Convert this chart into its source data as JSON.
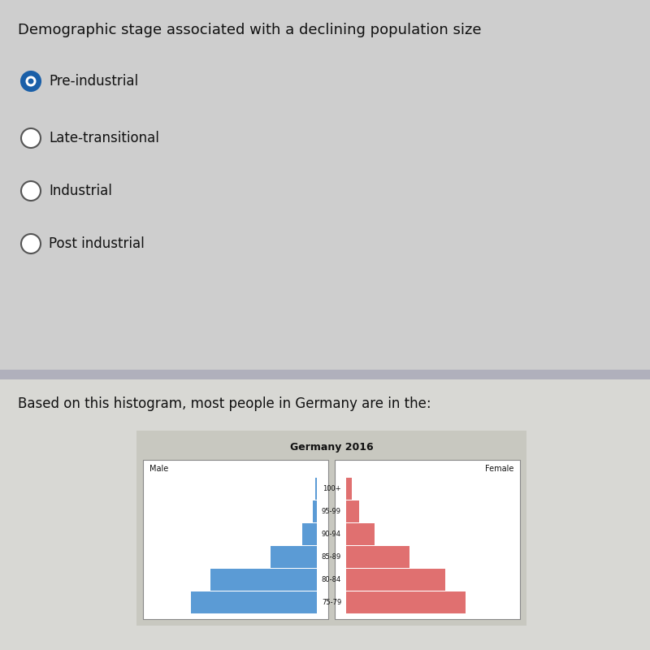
{
  "title": "Demographic stage associated with a declining population size",
  "options": [
    "Pre-industrial",
    "Late-transitional",
    "Industrial",
    "Post industrial"
  ],
  "selected_option": 0,
  "second_question": "Based on this histogram, most people in Germany are in the:",
  "pyramid_title": "Germany 2016",
  "pyramid_male_label": "Male",
  "pyramid_female_label": "Female",
  "pyramid_age_labels": [
    "100+",
    "95-99",
    "90-94",
    "85-89",
    "80-84",
    "75-79"
  ],
  "male_values": [
    0.05,
    0.12,
    0.45,
    1.4,
    3.2,
    3.8
  ],
  "female_values": [
    0.18,
    0.38,
    0.85,
    1.9,
    3.0,
    3.6
  ],
  "male_color": "#5B9BD5",
  "female_color": "#E07070",
  "female_color_light": "#F0A0A0",
  "bg_color": "#D8D8D8",
  "top_section_color": "#CBCBCB",
  "bottom_section_color": "#DCDCDC",
  "separator_color": "#B0B0BC",
  "pyramid_outer_bg": "#C8C8C8",
  "pyramid_inner_bg": "#FFFFFF",
  "radio_selected_fill": "#1A5FA8",
  "radio_selected_border": "#1A5FA8",
  "radio_unselected_fill": "#FFFFFF",
  "radio_unselected_border": "#555555",
  "text_color": "#111111",
  "font_size_title": 13,
  "font_size_options": 12,
  "font_size_question2": 12,
  "pyramid_title_fontsize": 9,
  "pyramid_label_fontsize": 7,
  "pyramid_age_fontsize": 6
}
